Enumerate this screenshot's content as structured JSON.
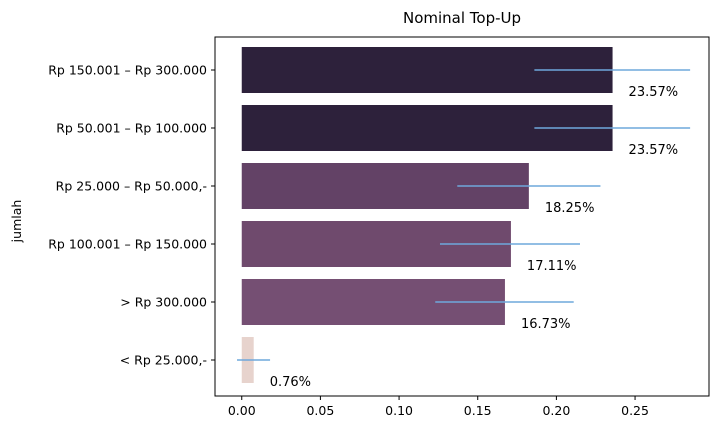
{
  "chart_data": {
    "type": "bar",
    "orientation": "horizontal",
    "title": "Nominal Top-Up",
    "xlabel": "",
    "ylabel": "jumlah",
    "categories": [
      "Rp 150.001 – Rp 300.000",
      "Rp 50.001 – Rp 100.000",
      "Rp 25.000 – Rp 50.000,-",
      "Rp 100.001 – Rp 150.000",
      "> Rp 300.000",
      "< Rp 25.000,-"
    ],
    "values": [
      0.2357,
      0.2357,
      0.1825,
      0.1711,
      0.1673,
      0.0076
    ],
    "error_low": [
      0.186,
      0.186,
      0.137,
      0.126,
      0.123,
      -0.003
    ],
    "error_high": [
      0.285,
      0.285,
      0.228,
      0.215,
      0.211,
      0.018
    ],
    "value_labels": [
      "23.57%",
      "23.57%",
      "18.25%",
      "17.11%",
      "16.73%",
      "0.76%"
    ],
    "bar_colors": [
      "#2d213b",
      "#2d213b",
      "#634266",
      "#6f4a6d",
      "#754f73",
      "#e7d3cd"
    ],
    "error_color": "#6fa8dc",
    "xlim": [
      -0.017,
      0.297
    ],
    "xticks": [
      0.0,
      0.05,
      0.1,
      0.15,
      0.2,
      0.25
    ],
    "xtick_labels": [
      "0.00",
      "0.05",
      "0.10",
      "0.15",
      "0.20",
      "0.25"
    ],
    "grid": false,
    "legend": "none"
  }
}
